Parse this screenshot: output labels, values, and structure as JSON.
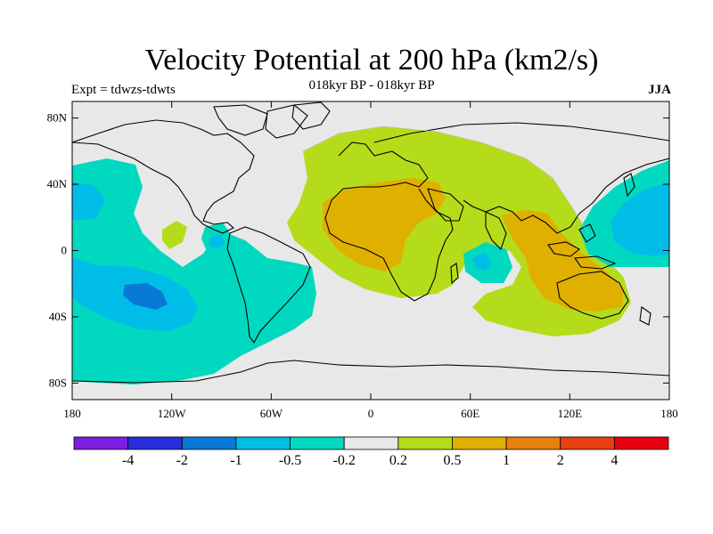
{
  "title": "Velocity Potential at 200 hPa (km2/s)",
  "subtitle": "018kyr BP - 018kyr BP",
  "left_label": "Expt = tdwzs-tdwts",
  "right_label": "JJA",
  "lat_ticks": [
    "80N",
    "40N",
    "0",
    "40S",
    "80S"
  ],
  "lon_ticks": [
    "180",
    "120W",
    "60W",
    "0",
    "60E",
    "120E",
    "180"
  ],
  "colorbar": {
    "colors": [
      "#7a1fe0",
      "#2a2ed8",
      "#0a78d6",
      "#00bde8",
      "#00d9c0",
      "#e8e8e8",
      "#b5dc1a",
      "#e0b000",
      "#e88010",
      "#e84010",
      "#e80010"
    ],
    "labels": [
      "-4",
      "-2",
      "-1",
      "-0.5",
      "-0.2",
      "0.2",
      "0.5",
      "1",
      "2",
      "4"
    ]
  },
  "colors": {
    "background": "#e8e8e8",
    "neg_weak": "#00d9c0",
    "neg_mid": "#00bde8",
    "neg_strong": "#0a78d6",
    "pos_weak": "#b5dc1a",
    "pos_mid": "#e0b000"
  }
}
